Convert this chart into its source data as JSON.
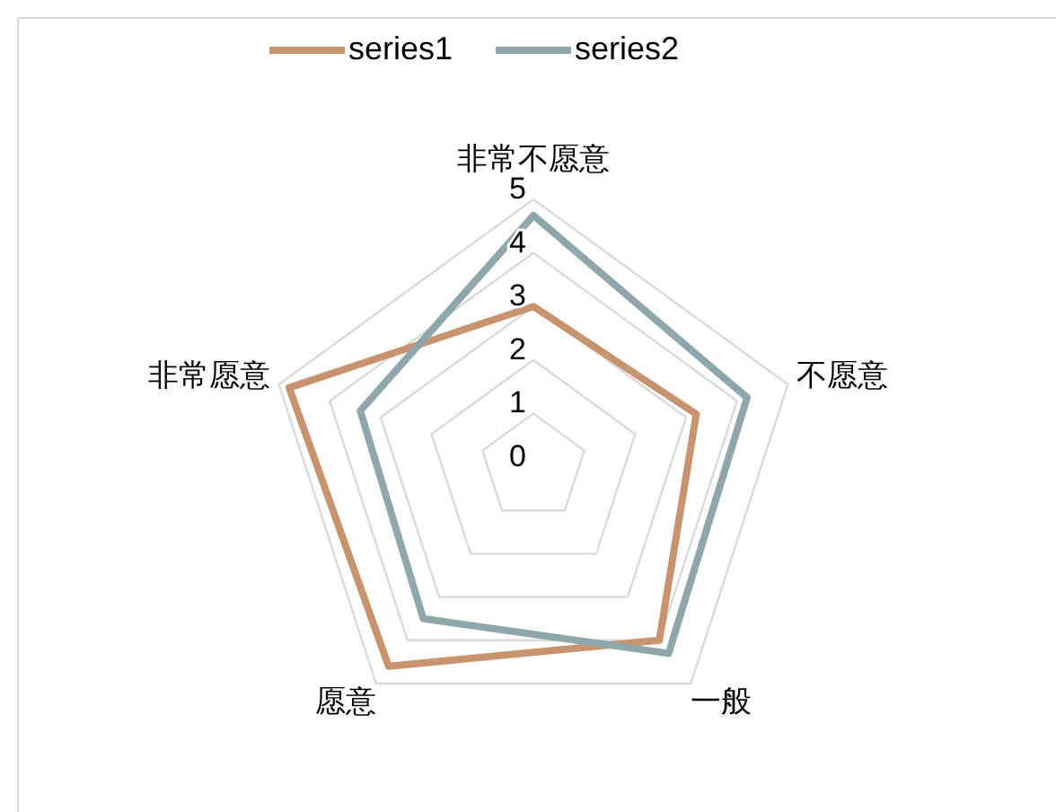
{
  "chart_data": {
    "type": "radar",
    "categories": [
      "非常不愿意",
      "不愿意",
      "一般",
      "愿意",
      "非常愿意"
    ],
    "series": [
      {
        "name": "series1",
        "color": "#c8936f",
        "values": [
          3.0,
          3.2,
          4.0,
          4.6,
          4.8
        ]
      },
      {
        "name": "series2",
        "color": "#8fa6ab",
        "values": [
          4.7,
          4.2,
          4.3,
          3.5,
          3.4
        ]
      }
    ],
    "ylim": [
      0,
      5
    ],
    "yticks": [
      0,
      1,
      2,
      3,
      4,
      5
    ],
    "legend": "top"
  }
}
